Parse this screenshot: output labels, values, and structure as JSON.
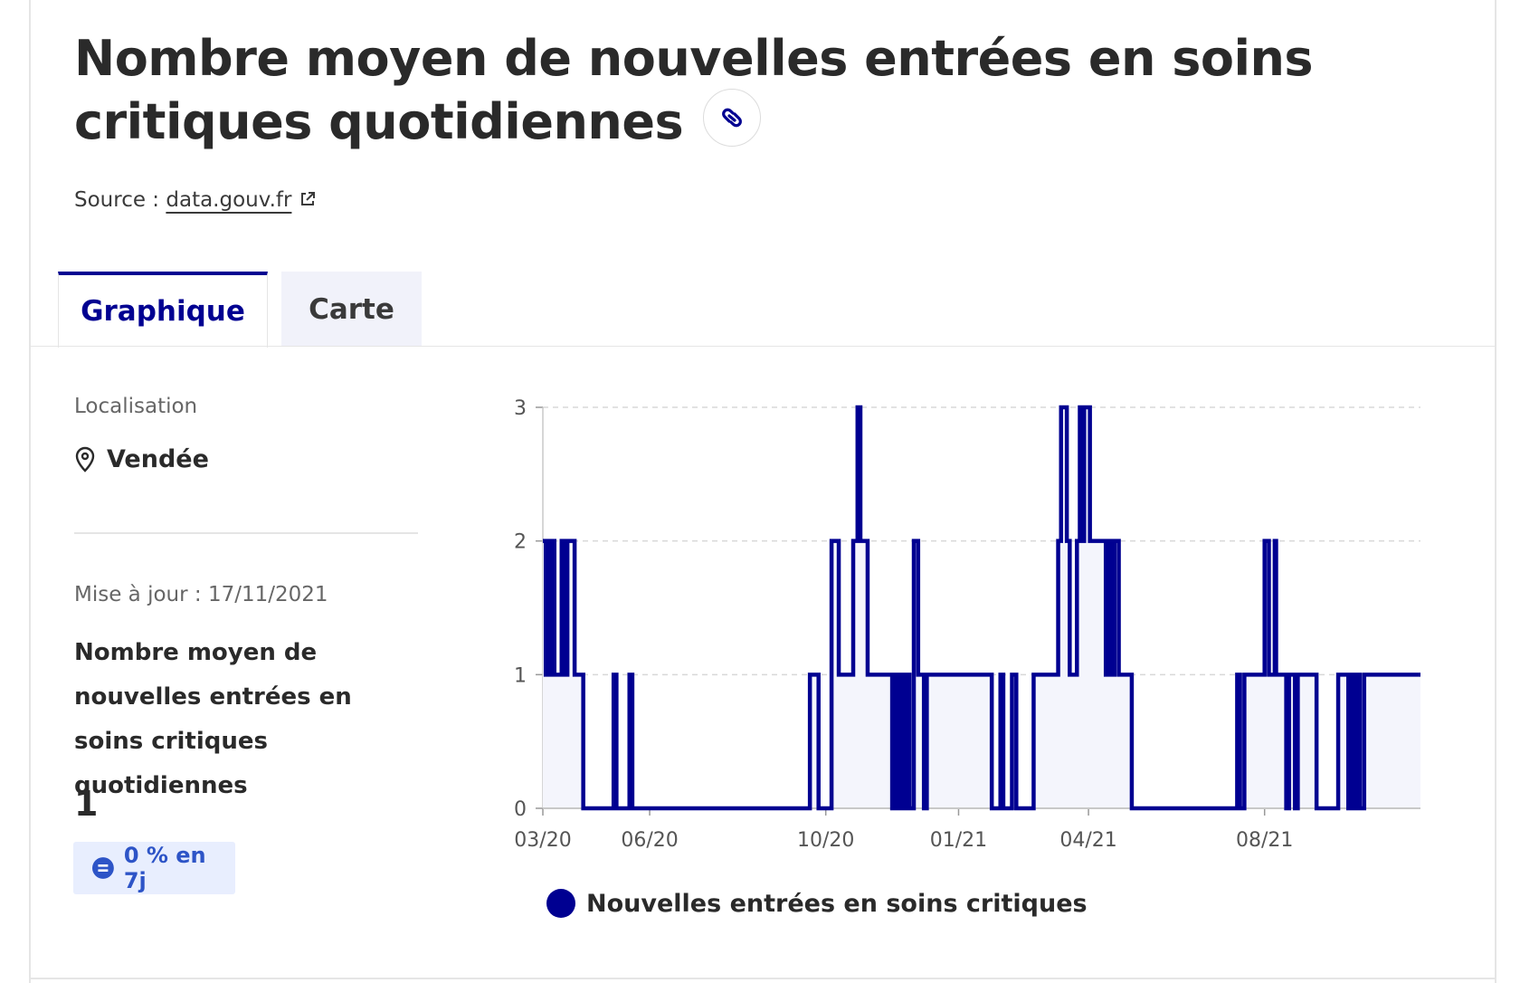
{
  "header": {
    "title": "Nombre moyen de nouvelles entrées en soins critiques quotidiennes",
    "source_prefix": "Source :",
    "source_link": "data.gouv.fr"
  },
  "tabs": [
    {
      "label": "Graphique",
      "active": true
    },
    {
      "label": "Carte",
      "active": false
    }
  ],
  "sidebar": {
    "location_label": "Localisation",
    "location_value": "Vendée",
    "update_text": "Mise à jour : 17/11/2021",
    "stat_title": "Nombre moyen de nouvelles entrées en soins critiques quotidiennes",
    "stat_value": "1",
    "badge_text": "0 % en 7j",
    "badge_icon": "equals-icon"
  },
  "colors": {
    "accent": "#000091",
    "area_fill": "#f4f5fc",
    "badge_bg": "#e8eefe",
    "badge_text": "#2d54c7"
  },
  "chart_data": {
    "type": "line",
    "x_tick_labels": [
      "03/20",
      "06/20",
      "10/20",
      "01/21",
      "04/21",
      "08/21"
    ],
    "y_ticks": [
      0,
      1,
      2,
      3
    ],
    "ylim": [
      0,
      3
    ],
    "xlim": [
      "2020-03-19",
      "2021-11-17"
    ],
    "grid": true,
    "legend_position": "bottom",
    "series": [
      {
        "name": "Nouvelles entrées en soins critiques",
        "step": true,
        "area": true,
        "points": [
          [
            "2020-03-19",
            2
          ],
          [
            "2020-03-21",
            1
          ],
          [
            "2020-03-22",
            2
          ],
          [
            "2020-03-24",
            1
          ],
          [
            "2020-03-26",
            2
          ],
          [
            "2020-03-27",
            1
          ],
          [
            "2020-03-30",
            1
          ],
          [
            "2020-04-01",
            2
          ],
          [
            "2020-04-03",
            1
          ],
          [
            "2020-04-05",
            2
          ],
          [
            "2020-04-10",
            1
          ],
          [
            "2020-04-16",
            0
          ],
          [
            "2020-05-07",
            1
          ],
          [
            "2020-05-09",
            0
          ],
          [
            "2020-05-18",
            1
          ],
          [
            "2020-05-20",
            0
          ],
          [
            "2020-09-20",
            1
          ],
          [
            "2020-09-26",
            0
          ],
          [
            "2020-10-05",
            2
          ],
          [
            "2020-10-10",
            1
          ],
          [
            "2020-10-20",
            2
          ],
          [
            "2020-10-23",
            3
          ],
          [
            "2020-10-25",
            2
          ],
          [
            "2020-10-30",
            1
          ],
          [
            "2020-11-16",
            0
          ],
          [
            "2020-11-18",
            1
          ],
          [
            "2020-11-20",
            0
          ],
          [
            "2020-11-22",
            1
          ],
          [
            "2020-11-24",
            0
          ],
          [
            "2020-11-26",
            1
          ],
          [
            "2020-11-28",
            0
          ],
          [
            "2020-12-01",
            2
          ],
          [
            "2020-12-04",
            1
          ],
          [
            "2020-12-08",
            0
          ],
          [
            "2020-12-10",
            1
          ],
          [
            "2021-01-24",
            0
          ],
          [
            "2021-01-30",
            1
          ],
          [
            "2021-02-01",
            0
          ],
          [
            "2021-02-07",
            1
          ],
          [
            "2021-02-10",
            0
          ],
          [
            "2021-02-22",
            1
          ],
          [
            "2021-03-11",
            2
          ],
          [
            "2021-03-13",
            3
          ],
          [
            "2021-03-17",
            2
          ],
          [
            "2021-03-19",
            1
          ],
          [
            "2021-03-24",
            2
          ],
          [
            "2021-03-26",
            3
          ],
          [
            "2021-03-28",
            2
          ],
          [
            "2021-03-29",
            3
          ],
          [
            "2021-04-02",
            2
          ],
          [
            "2021-04-13",
            1
          ],
          [
            "2021-04-15",
            2
          ],
          [
            "2021-04-17",
            1
          ],
          [
            "2021-04-19",
            2
          ],
          [
            "2021-04-22",
            1
          ],
          [
            "2021-05-01",
            0
          ],
          [
            "2021-07-13",
            1
          ],
          [
            "2021-07-15",
            0
          ],
          [
            "2021-07-18",
            1
          ],
          [
            "2021-08-01",
            2
          ],
          [
            "2021-08-04",
            1
          ],
          [
            "2021-08-08",
            2
          ],
          [
            "2021-08-09",
            1
          ],
          [
            "2021-08-16",
            0
          ],
          [
            "2021-08-18",
            1
          ],
          [
            "2021-08-22",
            0
          ],
          [
            "2021-08-24",
            1
          ],
          [
            "2021-09-06",
            0
          ],
          [
            "2021-09-21",
            1
          ],
          [
            "2021-09-28",
            0
          ],
          [
            "2021-09-30",
            1
          ],
          [
            "2021-10-02",
            0
          ],
          [
            "2021-10-04",
            1
          ],
          [
            "2021-10-06",
            0
          ],
          [
            "2021-10-09",
            1
          ],
          [
            "2021-11-17",
            1
          ]
        ]
      }
    ]
  }
}
